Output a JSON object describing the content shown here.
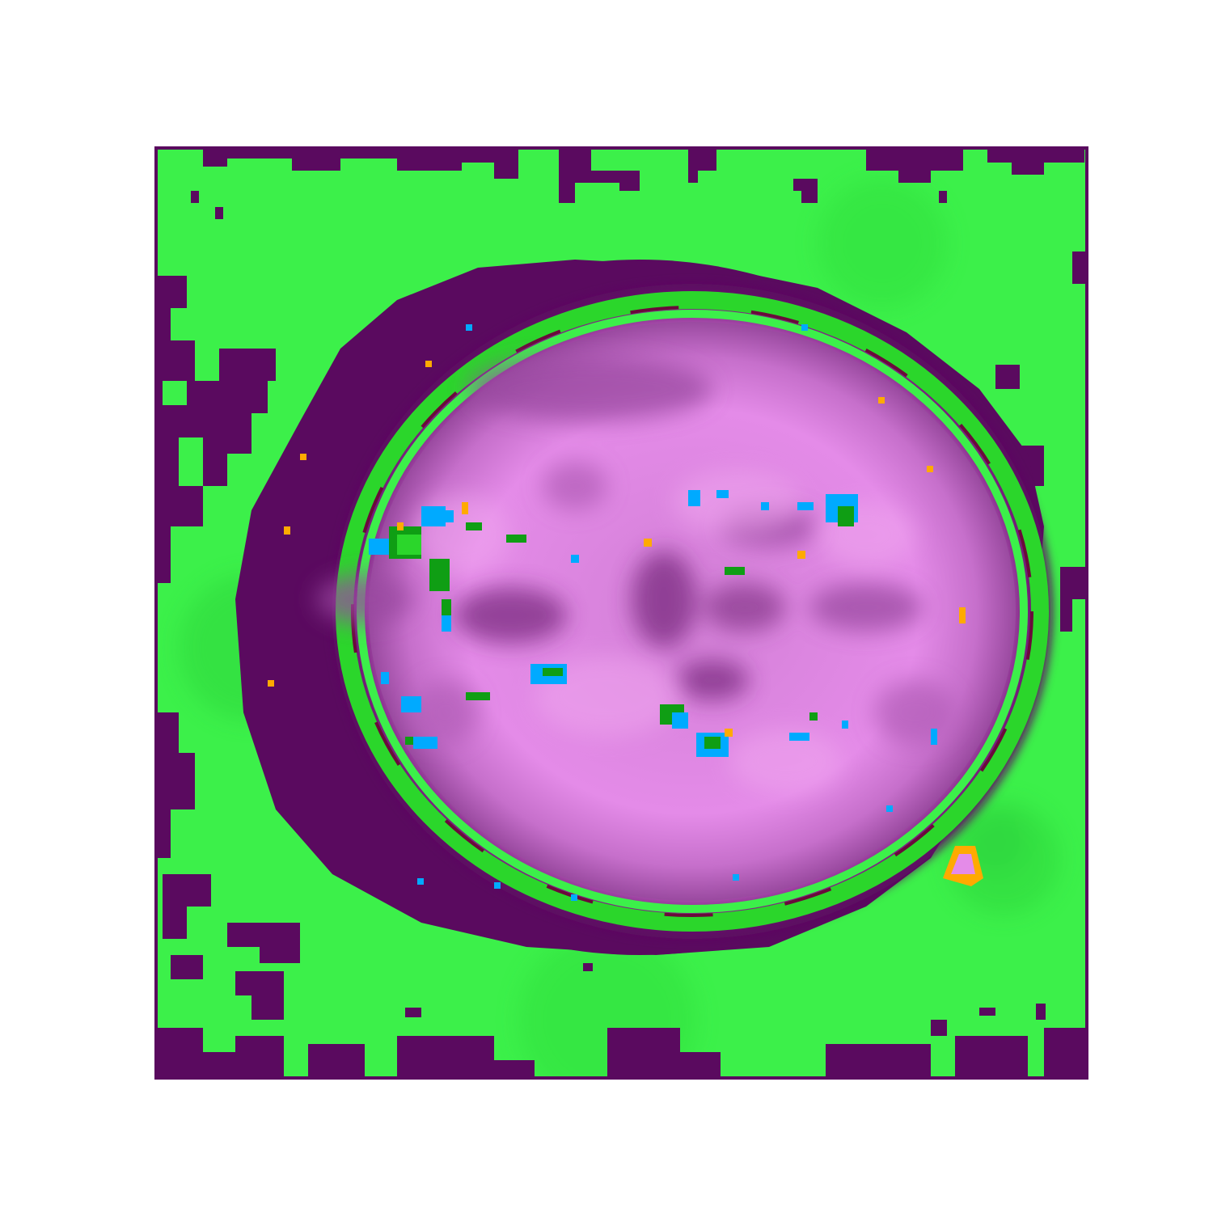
{
  "image": {
    "kind": "axial brain MRI slice rendered with a categorical overlay colormap",
    "colors": {
      "background_green": "#3cf04a",
      "background_green_dark": "#2fd83c",
      "dark_purple": "#5a0a5f",
      "mid_purple": "#8a3a8e",
      "pink": "#e48be8",
      "light_pink": "#f0a6ef",
      "ring_green": "#2bd62b",
      "deep_green": "#0f9e14",
      "cyan": "#00aaff",
      "orange": "#ffaa00",
      "maroon": "#6a0a3a",
      "white_figure_bg": "#ffffff"
    }
  }
}
